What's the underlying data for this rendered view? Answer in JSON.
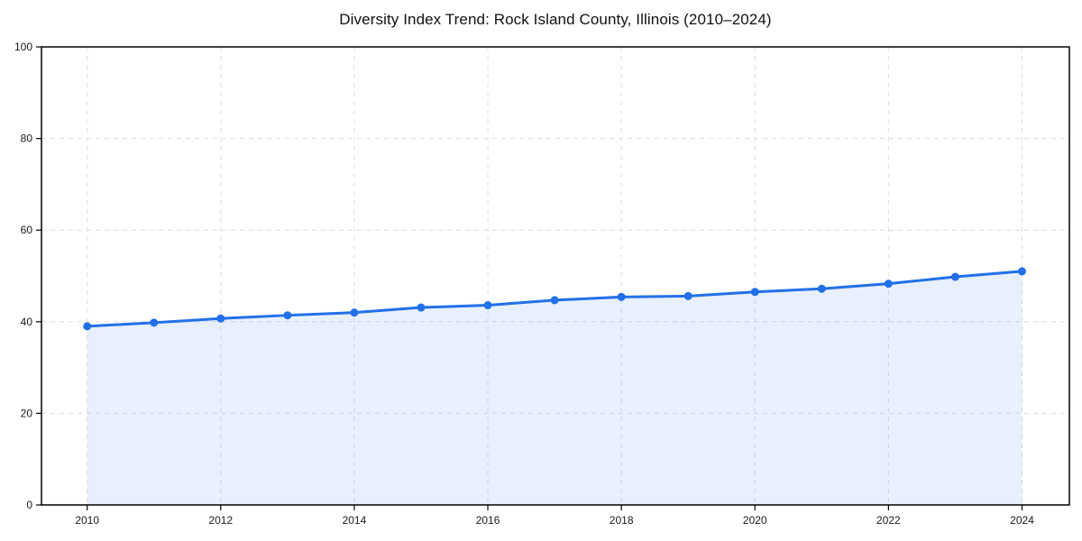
{
  "chart": {
    "title": "Diversity Index Trend: Rock Island County, Illinois (2010–2024)"
  },
  "chart_data": {
    "type": "line",
    "title": "Diversity Index Trend: Rock Island County, Illinois (2010–2024)",
    "series_name": "Diversity Index",
    "x": [
      2010,
      2011,
      2012,
      2013,
      2014,
      2015,
      2016,
      2017,
      2018,
      2019,
      2020,
      2021,
      2022,
      2023,
      2024
    ],
    "values": [
      39.0,
      39.8,
      40.7,
      41.4,
      42.0,
      43.1,
      43.6,
      44.7,
      45.4,
      45.6,
      46.5,
      47.2,
      48.3,
      49.8,
      51.0
    ],
    "xlabel": "",
    "ylabel": "",
    "xlim": [
      2009.3,
      2024.7
    ],
    "ylim": [
      0,
      100
    ],
    "xticks": [
      2010,
      2012,
      2014,
      2016,
      2018,
      2020,
      2022,
      2024
    ],
    "yticks": [
      0,
      20,
      40,
      60,
      80,
      100
    ],
    "grid": true,
    "grid_style": "dashed",
    "legend": "none",
    "colors": {
      "line": "#2270e8",
      "marker": "#2270e8",
      "fill": "rgba(34,112,232,0.10)",
      "gridline": "#dedede",
      "spine": "#000000",
      "tick_text": "#1a1a1a",
      "background": "#ffffff"
    }
  }
}
